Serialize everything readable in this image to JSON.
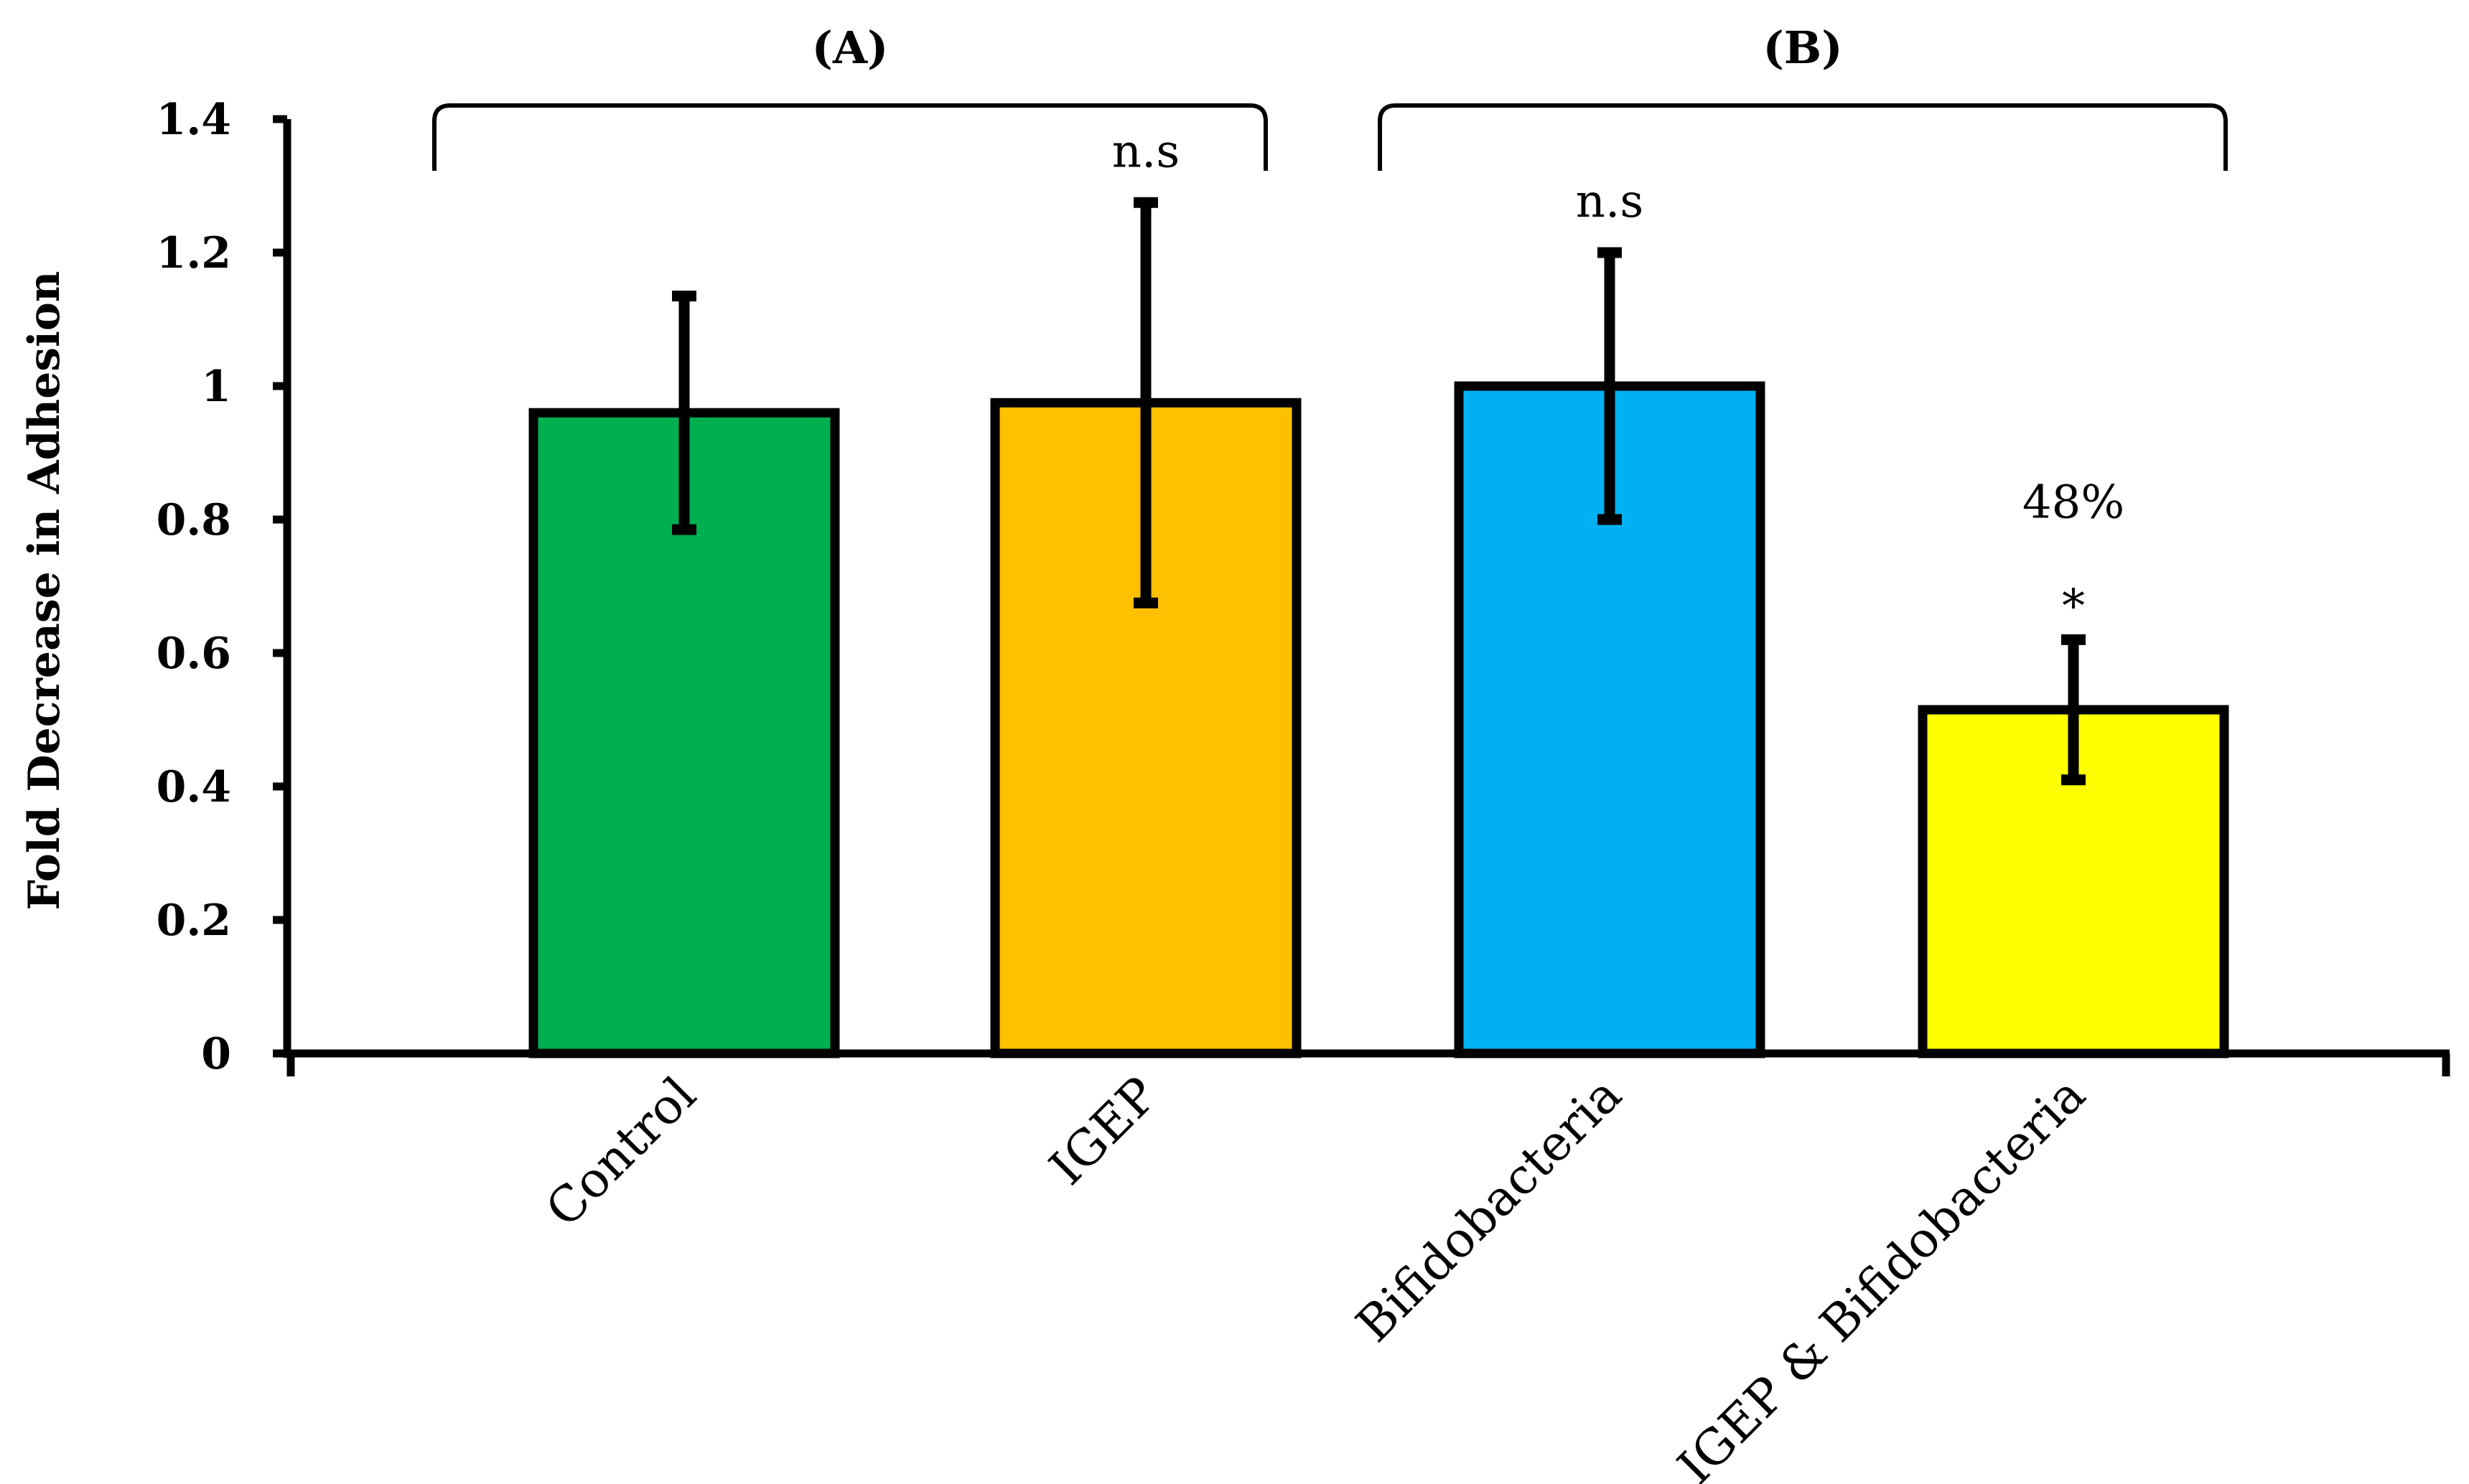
{
  "chart_data": {
    "type": "bar",
    "title": "",
    "xlabel": "",
    "ylabel": "Fold Decrease in Adhesion",
    "ylim": [
      0,
      1.4
    ],
    "yticks": [
      "0",
      "0.2",
      "0.4",
      "0.6",
      "0.8",
      "1",
      "1.2",
      "1.4"
    ],
    "categories": [
      "Control",
      "IGEP",
      "Bifidobacteria",
      "IGEP & Bifidobacteria"
    ],
    "values": [
      0.96,
      0.975,
      1.0,
      0.515
    ],
    "error": [
      0.175,
      0.3,
      0.2,
      0.105
    ],
    "colors": [
      "#00B050",
      "#FFC000",
      "#00B0F0",
      "#FFFF00"
    ],
    "annotations": [
      "",
      "n.s",
      "n.s",
      "48%"
    ],
    "significance": [
      "",
      "",
      "",
      "*"
    ],
    "groups": [
      {
        "label": "(A)",
        "categories": [
          "Control",
          "IGEP"
        ]
      },
      {
        "label": "(B)",
        "categories": [
          "Bifidobacteria",
          "IGEP & Bifidobacteria"
        ]
      }
    ]
  }
}
